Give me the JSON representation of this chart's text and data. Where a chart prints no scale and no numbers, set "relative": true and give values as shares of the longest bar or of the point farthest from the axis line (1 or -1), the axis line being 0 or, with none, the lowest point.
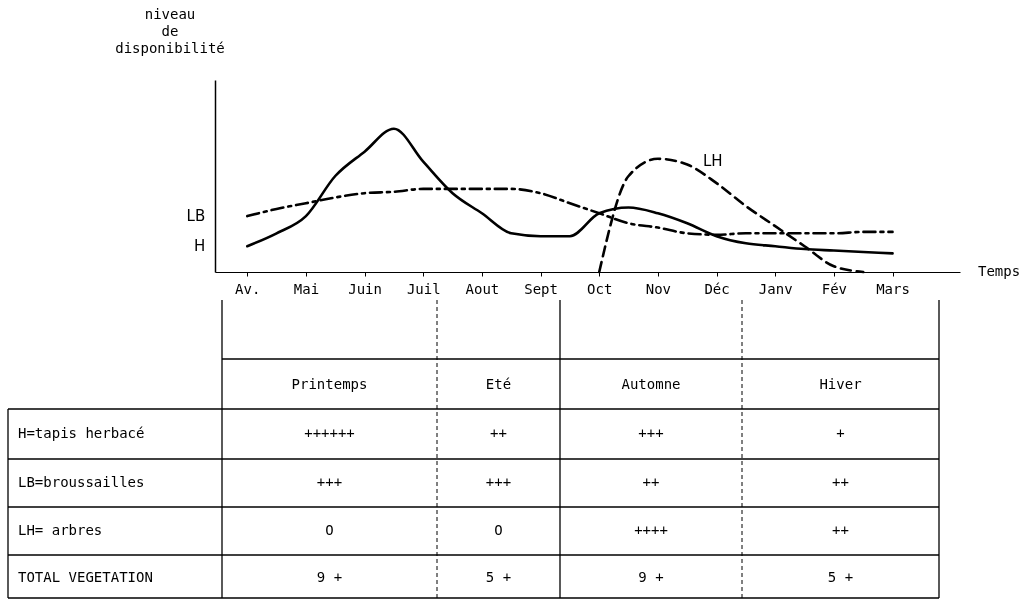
{
  "chart_data": [
    {
      "type": "line",
      "relative": true,
      "ylabel": "niveau\nde\ndisponibilité",
      "xlabel": "Temps",
      "categories": [
        "Av.",
        null,
        "Mai",
        null,
        "Juin",
        null,
        "Juil",
        null,
        "Aout",
        null,
        "Sept",
        null,
        "Oct",
        null,
        "Nov",
        null,
        "Déc",
        null,
        "Janv",
        null,
        "Fév",
        null,
        "Mars"
      ],
      "series": [
        {
          "name": "H",
          "color": "#000000",
          "line_style": "solid",
          "values": [
            0.18,
            0.27,
            0.39,
            0.67,
            0.84,
            1.0,
            0.77,
            0.55,
            0.41,
            0.27,
            0.25,
            0.25,
            0.41,
            0.45,
            0.41,
            0.34,
            0.25,
            0.2,
            0.18,
            0.16,
            0.15,
            0.14,
            0.13
          ]
        },
        {
          "name": "LB",
          "color": "#000000",
          "line_style": "dashdot",
          "values": [
            0.39,
            0.44,
            0.48,
            0.52,
            0.55,
            0.56,
            0.58,
            0.58,
            0.58,
            0.58,
            0.55,
            0.48,
            0.41,
            0.34,
            0.31,
            0.27,
            0.26,
            0.27,
            0.27,
            0.27,
            0.27,
            0.28,
            0.28
          ]
        },
        {
          "name": "LH",
          "color": "#000000",
          "line_style": "dashed",
          "values": [
            null,
            null,
            null,
            null,
            null,
            null,
            null,
            null,
            null,
            null,
            null,
            null,
            0,
            0.67,
            0.79,
            0.75,
            0.62,
            0.46,
            0.32,
            0.18,
            0.04,
            0,
            null
          ]
        }
      ]
    },
    {
      "type": "other",
      "categories": [
        "Printemps",
        "Eté",
        "Automne",
        "Hiver"
      ],
      "y_categories": [
        "H=tapis herbacé",
        "LB=broussailles",
        "LH= arbres",
        "TOTAL VEGETATION"
      ],
      "cell_labels": [
        [
          "++++++",
          "++",
          "+++",
          "+"
        ],
        [
          "+++",
          "+++",
          "++",
          "++"
        ],
        [
          "O",
          "O",
          "++++",
          "++"
        ],
        [
          "9 +",
          "5 +",
          "9 +",
          "5 +"
        ]
      ]
    }
  ]
}
